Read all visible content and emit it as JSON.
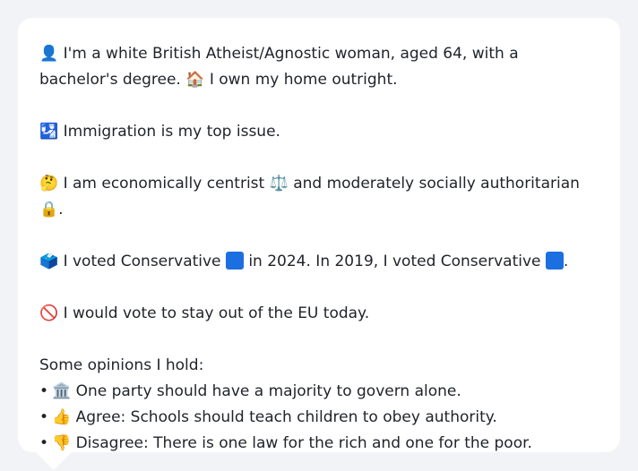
{
  "profile": {
    "line1_icon": "👤",
    "line1_text_a": "I'm a white British Atheist/Agnostic woman, aged 64, with a bachelor's degree.",
    "line1_icon2": "🏠",
    "line1_text_b": "I own my home outright.",
    "issue_icon": "🛂",
    "issue_text": "Immigration is my top issue.",
    "econ_icon": "🤔",
    "econ_text_a": "I am economically centrist",
    "econ_icon2": "⚖️",
    "econ_text_b": "and moderately socially authoritarian",
    "econ_icon3": "🔒",
    "econ_text_c": ".",
    "vote_icon": "🗳️",
    "vote_text_a": "I voted Conservative",
    "vote_text_b": "in 2024. In 2019, I voted Conservative",
    "vote_text_c": ".",
    "conservative_color": "#1c6fe0",
    "eu_icon": "🚫",
    "eu_text": "I would vote to stay out of the EU today.",
    "opinions_heading": "Some opinions I hold:",
    "opinions": [
      {
        "bullet": "•",
        "icon": "🏛️",
        "text": "One party should have a majority to govern alone."
      },
      {
        "bullet": "•",
        "icon": "👍",
        "text": "Agree: Schools should teach children to obey authority."
      },
      {
        "bullet": "•",
        "icon": "👎",
        "text": "Disagree: There is one law for the rich and one for the poor."
      }
    ]
  }
}
